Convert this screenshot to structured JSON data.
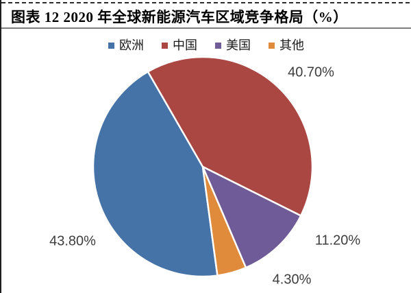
{
  "figure": {
    "title": "图表 12 2020 年全球新能源汽车区域竞争格局（%）"
  },
  "chart_data": {
    "type": "pie",
    "title": "2020 年全球新能源汽车区域竞争格局（%）",
    "unit": "%",
    "legend_position": "top",
    "direction": "clockwise",
    "start_angle_deg": 172.3,
    "categories": [
      "欧洲",
      "中国",
      "美国",
      "其他"
    ],
    "values": [
      43.8,
      40.7,
      11.2,
      4.3
    ],
    "labels": [
      "43.80%",
      "40.70%",
      "11.20%",
      "4.30%"
    ],
    "colors": [
      "#4573A7",
      "#AA4743",
      "#6F5B97",
      "#E08B3C"
    ]
  }
}
